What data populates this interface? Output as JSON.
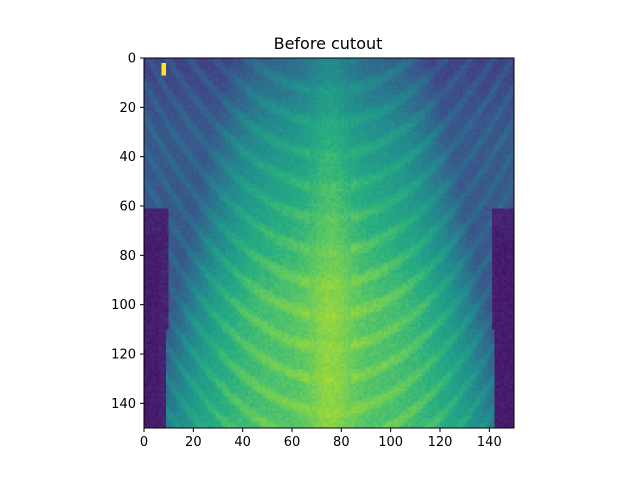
{
  "chart_data": {
    "type": "heatmap",
    "title": "Before cutout",
    "xlabel": "",
    "ylabel": "",
    "xlim": [
      0,
      150
    ],
    "ylim": [
      150,
      0
    ],
    "grid": false,
    "colormap": "viridis",
    "xticks": [
      0,
      20,
      40,
      60,
      80,
      100,
      120,
      140
    ],
    "yticks": [
      0,
      20,
      40,
      60,
      80,
      100,
      120,
      140
    ],
    "image_width": 150,
    "image_height": 150,
    "marker": {
      "row": 4,
      "col": 7,
      "color": "#fde725"
    }
  }
}
